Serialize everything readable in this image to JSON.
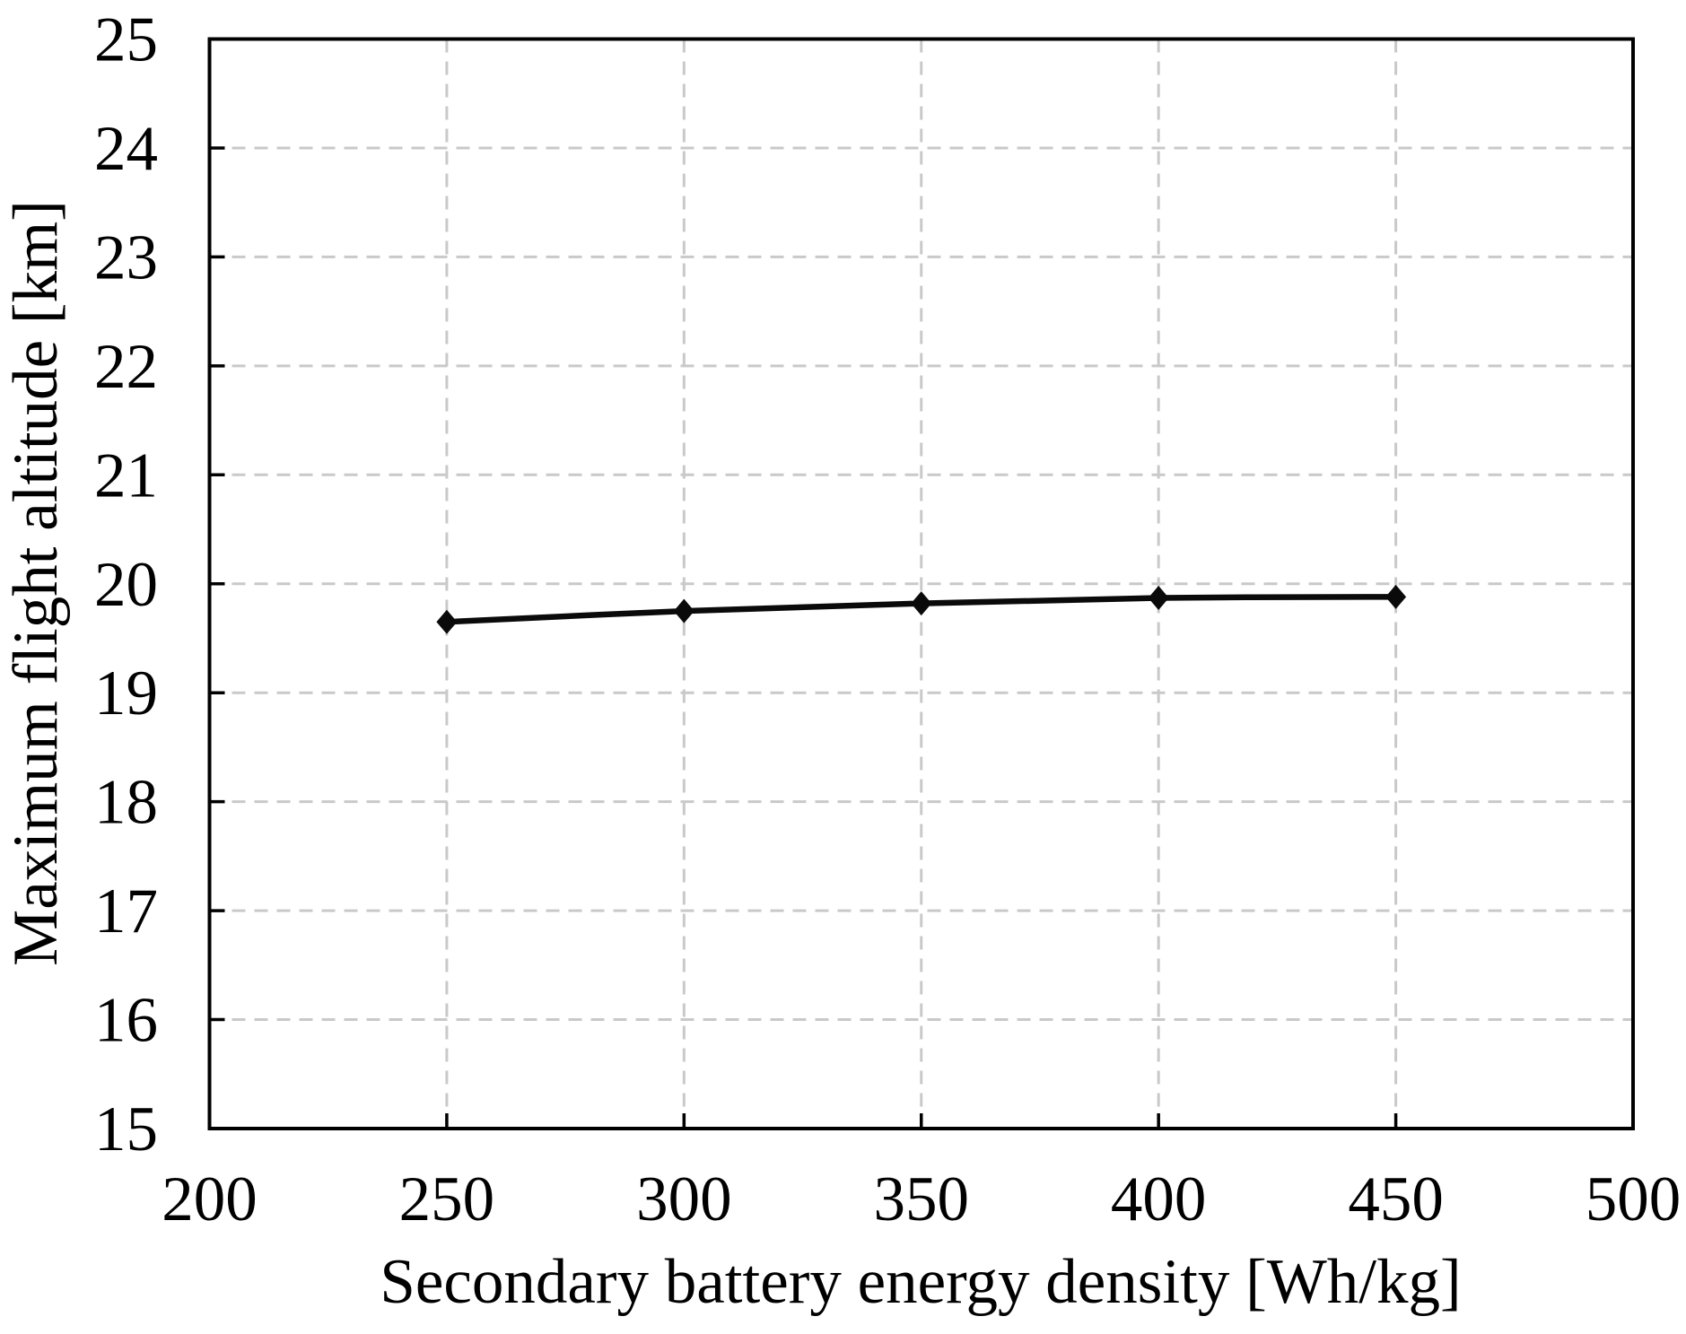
{
  "chart_data": {
    "type": "line",
    "title": "",
    "xlabel": "Secondary battery energy density [Wh/kg]",
    "ylabel": "Maximum flight altitude [km]",
    "x": [
      250,
      300,
      350,
      400,
      450
    ],
    "series": [
      {
        "name": "Maximum flight altitude",
        "values": [
          19.65,
          19.75,
          19.82,
          19.87,
          19.88
        ]
      }
    ],
    "xlim": [
      200,
      500
    ],
    "ylim": [
      15,
      25
    ],
    "xticks": [
      200,
      250,
      300,
      350,
      400,
      450,
      500
    ],
    "yticks": [
      15,
      16,
      17,
      18,
      19,
      20,
      21,
      22,
      23,
      24,
      25
    ],
    "grid": true,
    "grid_style": "dashed",
    "legend_position": "none",
    "line_color": "#0a0a0a",
    "marker_shape": "diamond",
    "marker_color": "#0a0a0a",
    "grid_color": "#c9c9c9",
    "axis_color": "#000000",
    "background_color": "#ffffff"
  }
}
